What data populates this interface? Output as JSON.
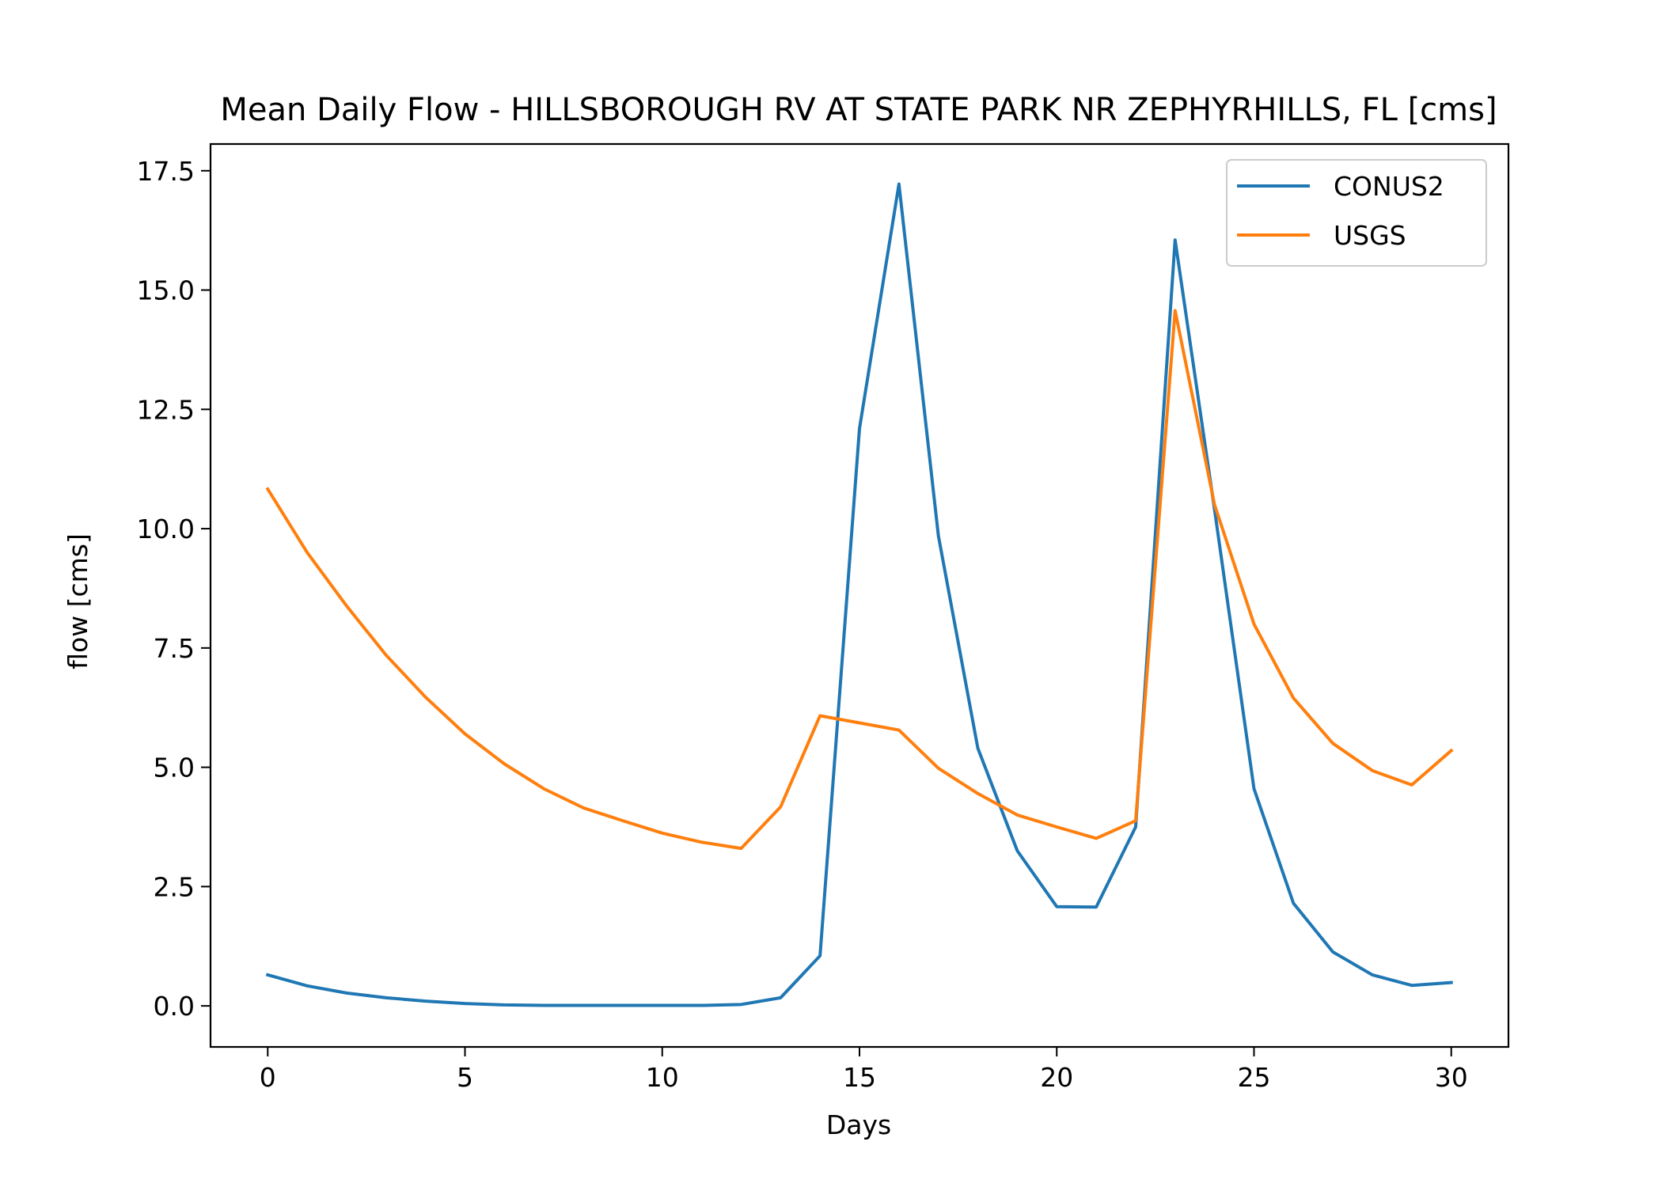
{
  "chart_data": {
    "type": "line",
    "title": "Mean Daily Flow - HILLSBOROUGH RV AT STATE PARK NR ZEPHYRHILLS, FL [cms]",
    "xlabel": "Days",
    "ylabel": "flow [cms]",
    "xlim": [
      -1.45,
      31.45
    ],
    "ylim": [
      -0.86,
      18.06
    ],
    "xticks": [
      0,
      5,
      10,
      15,
      20,
      25,
      30
    ],
    "yticks": [
      0.0,
      2.5,
      5.0,
      7.5,
      10.0,
      12.5,
      15.0,
      17.5
    ],
    "xtick_labels": [
      "0",
      "5",
      "10",
      "15",
      "20",
      "25",
      "30"
    ],
    "ytick_labels": [
      "0.0",
      "2.5",
      "5.0",
      "7.5",
      "10.0",
      "12.5",
      "15.0",
      "17.5"
    ],
    "grid": false,
    "legend_position": "top-right",
    "x": [
      0,
      1,
      2,
      3,
      4,
      5,
      6,
      7,
      8,
      9,
      10,
      11,
      12,
      13,
      14,
      15,
      16,
      17,
      18,
      19,
      20,
      21,
      22,
      23,
      24,
      25,
      26,
      27,
      28,
      29,
      30
    ],
    "series": [
      {
        "name": "CONUS2",
        "color": "#1f77b4",
        "values": [
          0.65,
          0.42,
          0.27,
          0.17,
          0.1,
          0.05,
          0.02,
          0.01,
          0.01,
          0.01,
          0.01,
          0.01,
          0.03,
          0.17,
          1.05,
          12.1,
          17.22,
          9.85,
          5.4,
          3.25,
          2.08,
          2.07,
          3.75,
          16.05,
          10.4,
          4.55,
          2.15,
          1.13,
          0.65,
          0.43,
          0.49
        ]
      },
      {
        "name": "USGS",
        "color": "#ff7f0e",
        "values": [
          10.83,
          9.5,
          8.38,
          7.35,
          6.47,
          5.7,
          5.07,
          4.55,
          4.15,
          3.88,
          3.62,
          3.43,
          3.3,
          4.17,
          6.08,
          5.93,
          5.78,
          4.98,
          4.45,
          4.0,
          3.75,
          3.51,
          3.88,
          14.57,
          10.5,
          8.0,
          6.45,
          5.5,
          4.93,
          4.63,
          5.35
        ]
      }
    ]
  }
}
